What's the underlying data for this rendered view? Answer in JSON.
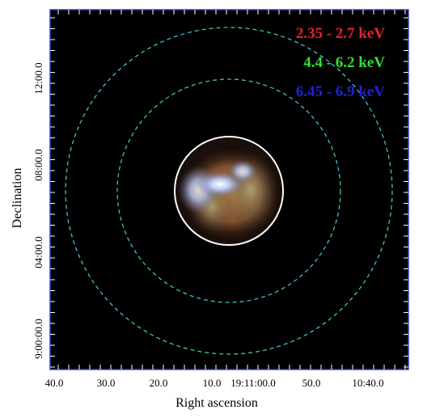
{
  "legend": [
    {
      "label": "2.35 - 2.7 keV",
      "color": "#e8202a"
    },
    {
      "label": "4.4 - 6.2 keV",
      "color": "#30e030"
    },
    {
      "label": "6.45 - 6.9 keV",
      "color": "#2020d8"
    }
  ],
  "x_axis": {
    "label": "Right ascension",
    "ticks": [
      "40.0",
      "30.0",
      "20.0",
      "10.0",
      "19:11:00.0",
      "50.0",
      "10:40.0"
    ]
  },
  "y_axis": {
    "label": "Declination",
    "ticks": [
      "12:00.0",
      "08:00.0",
      "04:00.0",
      "9:00:00.0"
    ]
  }
}
